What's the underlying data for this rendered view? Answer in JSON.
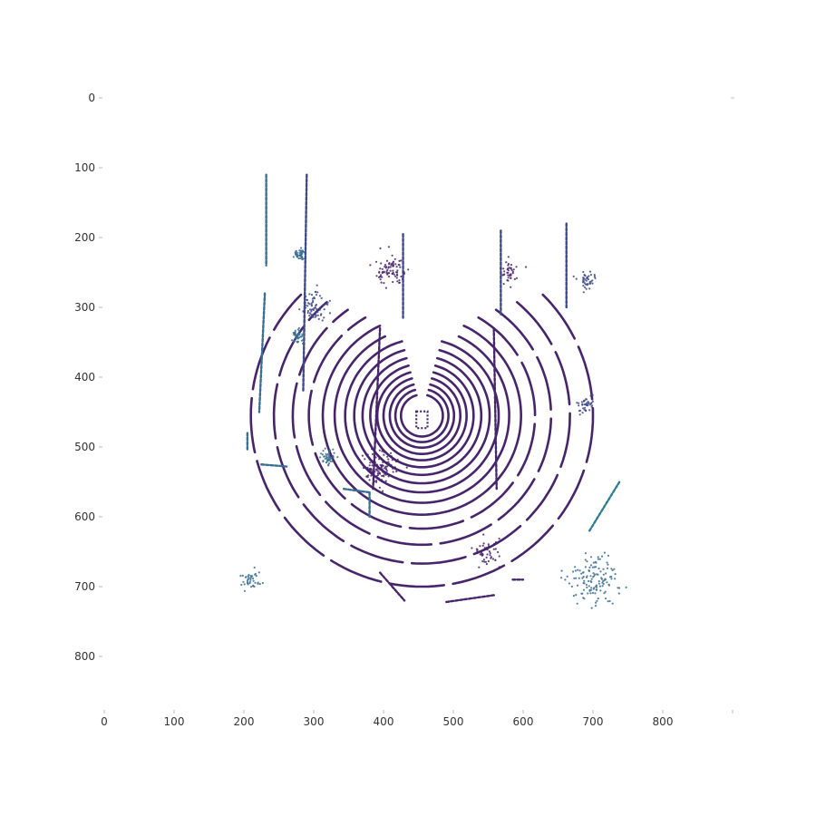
{
  "chart_data": {
    "type": "scatter",
    "title": "",
    "xlabel": "",
    "ylabel": "",
    "description_of_view": "bird's-eye view lidar point cloud",
    "xlim": [
      0,
      900
    ],
    "ylim": [
      0,
      900
    ],
    "y_inverted": true,
    "grid": false,
    "legend": "none",
    "x_ticks": [
      0,
      100,
      200,
      300,
      400,
      500,
      600,
      700,
      800
    ],
    "x_tick_labels": [
      "0",
      "100",
      "200",
      "300",
      "400",
      "500",
      "600",
      "700",
      "800"
    ],
    "y_ticks": [
      0,
      100,
      200,
      300,
      400,
      500,
      600,
      700,
      800
    ],
    "y_tick_labels": [
      "0",
      "100",
      "200",
      "300",
      "400",
      "500",
      "600",
      "700",
      "800"
    ],
    "colors": {
      "ring": "#46256b",
      "mid": "#3f4a8a",
      "far": "#3b6e91",
      "teal": "#2f7f8e"
    },
    "ego_center": [
      455,
      455
    ],
    "rings": [
      {
        "radius": 30,
        "theta_start": 15,
        "theta_end": 345,
        "color_key": "ring"
      },
      {
        "radius": 38,
        "theta_start": 15,
        "theta_end": 345,
        "color_key": "ring"
      },
      {
        "radius": 46,
        "theta_start": 15,
        "theta_end": 345,
        "color_key": "ring"
      },
      {
        "radius": 55,
        "theta_start": 15,
        "theta_end": 345,
        "color_key": "ring"
      },
      {
        "radius": 64,
        "theta_start": 15,
        "theta_end": 345,
        "color_key": "ring"
      },
      {
        "radius": 74,
        "theta_start": 15,
        "theta_end": 345,
        "color_key": "ring"
      },
      {
        "radius": 85,
        "theta_start": 15,
        "theta_end": 345,
        "color_key": "ring"
      },
      {
        "radius": 97,
        "theta_start": 15,
        "theta_end": 345,
        "color_key": "ring"
      },
      {
        "radius": 110,
        "theta_start": 15,
        "theta_end": 345,
        "color_key": "ring"
      },
      {
        "radius": 125,
        "theta_start": 25,
        "theta_end": 335,
        "color_key": "ring"
      },
      {
        "radius": 142,
        "theta_start": 25,
        "theta_end": 335,
        "color_key": "ring"
      },
      {
        "radius": 162,
        "theta_start": 30,
        "theta_end": 330,
        "color_key": "ring"
      },
      {
        "radius": 185,
        "theta_start": 35,
        "theta_end": 325,
        "color_key": "ring"
      },
      {
        "radius": 212,
        "theta_start": 40,
        "theta_end": 320,
        "color_key": "ring"
      },
      {
        "radius": 245,
        "theta_start": 45,
        "theta_end": 315,
        "color_key": "ring"
      }
    ],
    "segments": [
      {
        "x1": 232,
        "y1": 110,
        "x2": 232,
        "y2": 240,
        "color_key": "far"
      },
      {
        "x1": 290,
        "y1": 110,
        "x2": 285,
        "y2": 420,
        "color_key": "mid"
      },
      {
        "x1": 230,
        "y1": 280,
        "x2": 222,
        "y2": 450,
        "color_key": "far"
      },
      {
        "x1": 205,
        "y1": 480,
        "x2": 205,
        "y2": 505,
        "color_key": "far"
      },
      {
        "x1": 225,
        "y1": 525,
        "x2": 262,
        "y2": 528,
        "color_key": "far"
      },
      {
        "x1": 343,
        "y1": 560,
        "x2": 380,
        "y2": 565,
        "color_key": "far"
      },
      {
        "x1": 380,
        "y1": 565,
        "x2": 380,
        "y2": 600,
        "color_key": "far"
      },
      {
        "x1": 568,
        "y1": 190,
        "x2": 568,
        "y2": 310,
        "color_key": "mid"
      },
      {
        "x1": 428,
        "y1": 195,
        "x2": 428,
        "y2": 315,
        "color_key": "mid"
      },
      {
        "x1": 395,
        "y1": 330,
        "x2": 385,
        "y2": 560,
        "color_key": "ring"
      },
      {
        "x1": 558,
        "y1": 330,
        "x2": 562,
        "y2": 560,
        "color_key": "ring"
      },
      {
        "x1": 695,
        "y1": 620,
        "x2": 738,
        "y2": 550,
        "color_key": "teal"
      },
      {
        "x1": 662,
        "y1": 180,
        "x2": 662,
        "y2": 300,
        "color_key": "mid"
      },
      {
        "x1": 395,
        "y1": 680,
        "x2": 430,
        "y2": 720,
        "color_key": "ring"
      },
      {
        "x1": 490,
        "y1": 722,
        "x2": 560,
        "y2": 712,
        "color_key": "ring"
      },
      {
        "x1": 585,
        "y1": 690,
        "x2": 600,
        "y2": 690,
        "color_key": "ring"
      }
    ],
    "clusters": [
      {
        "center": [
          690,
          260
        ],
        "spread": 12,
        "count": 40,
        "color_key": "mid"
      },
      {
        "center": [
          690,
          440
        ],
        "spread": 12,
        "count": 40,
        "color_key": "mid"
      },
      {
        "center": [
          700,
          690
        ],
        "spread": 35,
        "count": 130,
        "color_key": "far"
      },
      {
        "center": [
          210,
          690
        ],
        "spread": 14,
        "count": 40,
        "color_key": "far"
      },
      {
        "center": [
          280,
          225
        ],
        "spread": 8,
        "count": 45,
        "color_key": "far"
      },
      {
        "center": [
          280,
          340
        ],
        "spread": 10,
        "count": 45,
        "color_key": "far"
      },
      {
        "center": [
          320,
          515
        ],
        "spread": 10,
        "count": 45,
        "color_key": "far"
      },
      {
        "center": [
          395,
          530
        ],
        "spread": 20,
        "count": 120,
        "color_key": "ring"
      },
      {
        "center": [
          410,
          250
        ],
        "spread": 20,
        "count": 80,
        "color_key": "ring"
      },
      {
        "center": [
          300,
          300
        ],
        "spread": 20,
        "count": 70,
        "color_key": "mid"
      },
      {
        "center": [
          550,
          650
        ],
        "spread": 20,
        "count": 50,
        "color_key": "ring"
      },
      {
        "center": [
          580,
          250
        ],
        "spread": 15,
        "count": 40,
        "color_key": "ring"
      }
    ]
  }
}
